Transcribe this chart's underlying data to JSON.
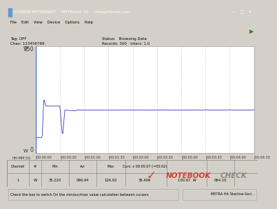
{
  "title_text": "GOSSEN METRAWATT    METRAwin 10    Unregistered copy",
  "menu_text": "File    Edit    View    Device    Options    Help",
  "tag_text": "Tag: OFF",
  "chan_text": "Chan: 123456789",
  "status_text": "Status:   Browsing Data",
  "records_text": "Records: 300   Interv: 1.0",
  "y_top_label": "250",
  "y_bottom_label": "0",
  "y_unit": "W",
  "x_label": "HH:MM:SS",
  "x_ticks": [
    "|00:00:00",
    "|00:00:30",
    "|00:01:00",
    "|00:01:30",
    "|00:02:00",
    "|00:02:30",
    "|00:03:00",
    "|00:03:30",
    "|00:04:00",
    "|00:04:30"
  ],
  "line_color": "#4444bb",
  "plot_bg": "#ffffff",
  "grid_color": "#c0c0d8",
  "window_bg": "#d4d0c8",
  "title_bar_color": "#0a246a",
  "table_headers": [
    "Channel",
    "#",
    "Min",
    "Avr",
    "Max",
    "Curs: x 00:05:07 (=05:02)"
  ],
  "table_row": [
    "1",
    "W",
    "35.220",
    "096.94",
    "126.92",
    "36.406",
    "100.67  W",
    "064.10"
  ],
  "cursor_label": "Curs: x 00:05:07 (=05:02)",
  "status_bar": "Check the box to switch On the min/avr/max value calculation between cursors",
  "status_bar_right": "METRA Hit Starline-Seri...",
  "notebookcheck_color": "#cc3322",
  "total_seconds": 270,
  "y_min": 0,
  "y_max": 250,
  "idle_power": 36.4,
  "spike_peak": 127,
  "plateau1": 110,
  "steady": 100.7
}
